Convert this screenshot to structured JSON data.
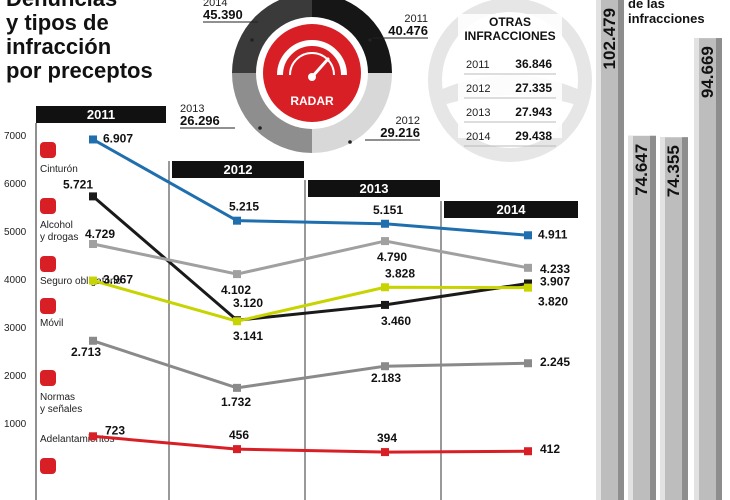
{
  "title_lines": [
    "Denuncias",
    "y tipos de",
    "infracción",
    "por preceptos"
  ],
  "radar_donut": {
    "center_label": "RADAR",
    "segments": [
      {
        "year": "2014",
        "value": "45.390"
      },
      {
        "year": "2011",
        "value": "40.476"
      },
      {
        "year": "2012",
        "value": "29.216"
      },
      {
        "year": "2013",
        "value": "26.296"
      }
    ]
  },
  "otras": {
    "title_lines": [
      "OTRAS",
      "INFRACCIONES"
    ],
    "rows": [
      {
        "year": "2011",
        "value": "36.846"
      },
      {
        "year": "2012",
        "value": "27.335"
      },
      {
        "year": "2013",
        "value": "27.943"
      },
      {
        "year": "2014",
        "value": "29.438"
      }
    ]
  },
  "total_header": [
    "de las",
    "infracciones"
  ],
  "total_columns": [
    {
      "value": "102.479",
      "level": 102479
    },
    {
      "value": "74.647",
      "level": 74647
    },
    {
      "value": "74.355",
      "level": 74355
    },
    {
      "value": "94.669",
      "level": 94669
    }
  ],
  "colors": {
    "cinturon": "#1f6fae",
    "alcohol": "#1a1a1a",
    "seguro": "#a0a0a0",
    "movil": "#c8d400",
    "normas": "#8a8a8a",
    "adelantamientos": "#d81f26",
    "icon": "#d81f26"
  },
  "chart_data": {
    "type": "line",
    "x": [
      "2011",
      "2012",
      "2013",
      "2014"
    ],
    "ylim": [
      0,
      7000
    ],
    "yticks": [
      1000,
      2000,
      3000,
      4000,
      5000,
      6000,
      7000
    ],
    "series": [
      {
        "name": "Cinturón",
        "key": "cinturon",
        "values": [
          6907,
          5215,
          5151,
          4911
        ],
        "labels": [
          "6.907",
          "5.215",
          "5.151",
          "4.911"
        ]
      },
      {
        "name": "Alcohol y drogas",
        "key": "alcohol",
        "values": [
          5721,
          3141,
          3460,
          3907
        ],
        "labels": [
          "5.721",
          "3.141",
          "3.460",
          "3.907"
        ]
      },
      {
        "name": "Seguro obligatorio",
        "key": "seguro",
        "values": [
          4729,
          4102,
          4790,
          4233
        ],
        "labels": [
          "4.729",
          "4.102",
          "4.790",
          "4.233"
        ]
      },
      {
        "name": "Móvil",
        "key": "movil",
        "values": [
          3967,
          3120,
          3828,
          3820
        ],
        "labels": [
          "3.967",
          "3.120",
          "3.828",
          "3.820"
        ]
      },
      {
        "name": "Normas y señales",
        "key": "normas",
        "values": [
          2713,
          1732,
          2183,
          2245
        ],
        "labels": [
          "2.713",
          "1.732",
          "2.183",
          "2.245"
        ]
      },
      {
        "name": "Adelantamientos",
        "key": "adelantamientos",
        "values": [
          723,
          456,
          394,
          412
        ],
        "labels": [
          "723",
          "456",
          "394",
          "412"
        ]
      }
    ]
  }
}
